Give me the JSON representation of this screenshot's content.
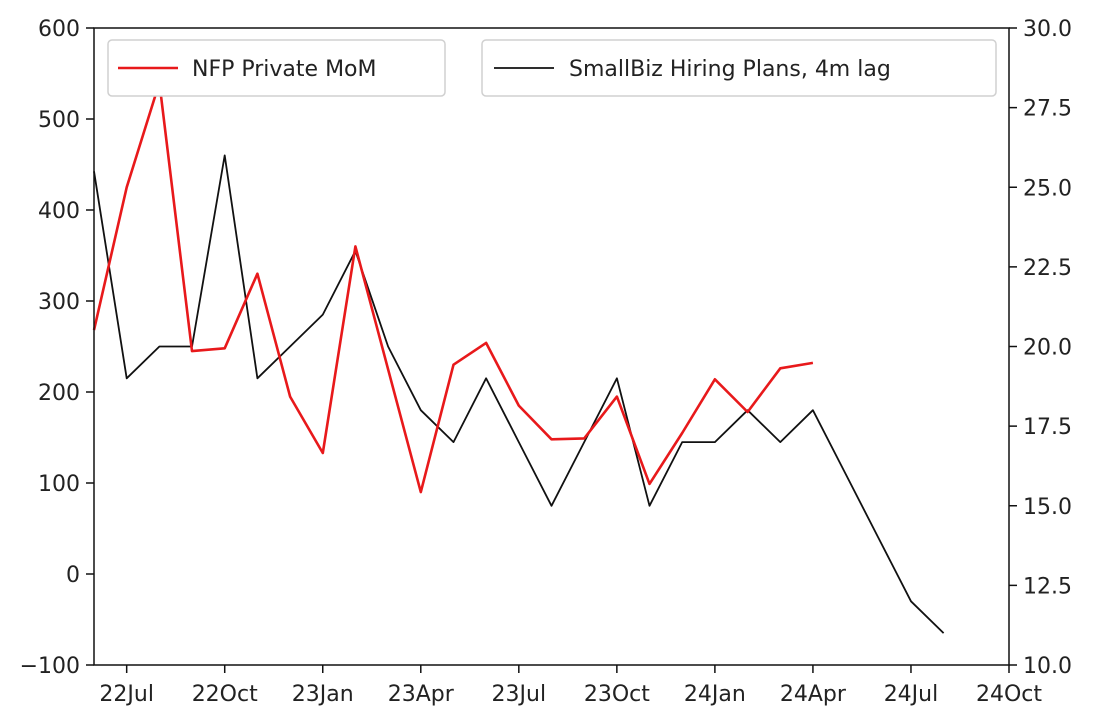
{
  "chart_data": {
    "type": "line",
    "title": "",
    "xlabel": "",
    "ylabel_left": "",
    "ylabel_right": "",
    "x_ticks": [
      "22Jul",
      "22Oct",
      "23Jan",
      "23Apr",
      "23Jul",
      "23Oct",
      "24Jan",
      "24Apr",
      "24Jul",
      "24Oct"
    ],
    "x_range": [
      "2022-06",
      "2024-10"
    ],
    "y_left": {
      "ticks": [
        "600",
        "500",
        "400",
        "300",
        "200",
        "100",
        "0",
        "−100"
      ],
      "range": [
        -100,
        600
      ]
    },
    "y_right": {
      "ticks": [
        "30.0",
        "27.5",
        "25.0",
        "22.5",
        "20.0",
        "17.5",
        "15.0",
        "12.5",
        "10.0"
      ],
      "range": [
        10,
        30
      ]
    },
    "grid": false,
    "legend_placement": "top",
    "series": [
      {
        "name": "NFP Private MoM",
        "axis": "left",
        "color": "#e8191b",
        "x": [
          "2022-06",
          "2022-07",
          "2022-08",
          "2022-09",
          "2022-10",
          "2022-11",
          "2022-12",
          "2023-01",
          "2023-02",
          "2023-03",
          "2023-04",
          "2023-05",
          "2023-06",
          "2023-07",
          "2023-08",
          "2023-09",
          "2023-10",
          "2023-11",
          "2023-12",
          "2024-01",
          "2024-02",
          "2024-03",
          "2024-04"
        ],
        "values": [
          268,
          425,
          540,
          245,
          248,
          330,
          195,
          133,
          360,
          225,
          90,
          230,
          254,
          185,
          148,
          149,
          195,
          99,
          155,
          214,
          178,
          226,
          232
        ]
      },
      {
        "name": "SmallBiz Hiring Plans, 4m lag",
        "axis": "right",
        "color": "#111111",
        "x": [
          "2022-06",
          "2022-07",
          "2022-08",
          "2022-09",
          "2022-10",
          "2022-11",
          "2022-12",
          "2023-01",
          "2023-02",
          "2023-03",
          "2023-04",
          "2023-05",
          "2023-06",
          "2023-07",
          "2023-08",
          "2023-09",
          "2023-10",
          "2023-11",
          "2023-12",
          "2024-01",
          "2024-02",
          "2024-03",
          "2024-04",
          "2024-05",
          "2024-06",
          "2024-07",
          "2024-08"
        ],
        "values": [
          25.5,
          19,
          20,
          20,
          26,
          19,
          20,
          21,
          23,
          20,
          18,
          17,
          19,
          17,
          15,
          17,
          19,
          15,
          17,
          17,
          18,
          17,
          18,
          16,
          14,
          12,
          11
        ]
      }
    ]
  }
}
